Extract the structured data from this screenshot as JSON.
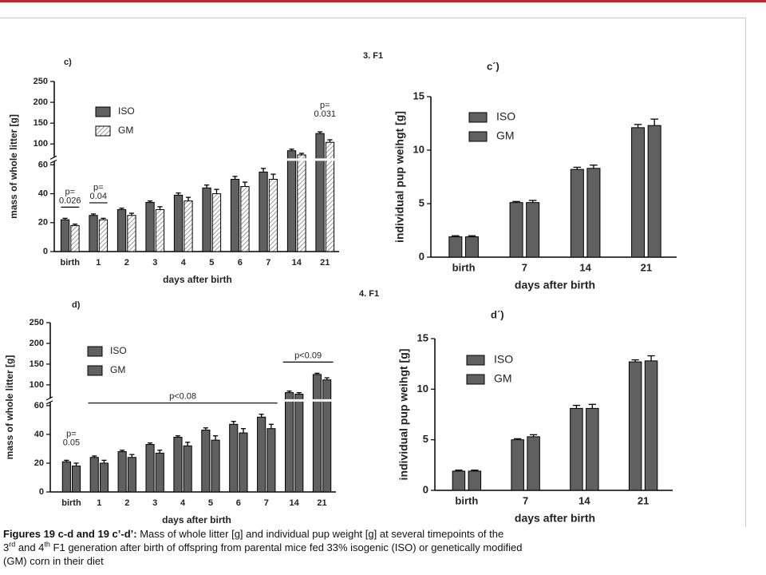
{
  "sections": [
    "3. F1",
    "4. F1"
  ],
  "chart_data": [
    {
      "type": "bar",
      "panel": "c)",
      "xlabel": "days after birth",
      "ylabel": "mass of whole litter [g]",
      "categories": [
        "birth",
        "1",
        "2",
        "3",
        "4",
        "5",
        "6",
        "7",
        "14",
        "21"
      ],
      "series": [
        {
          "name": "ISO",
          "color": "#606060",
          "values": [
            22,
            25,
            29,
            34,
            39,
            44,
            50,
            55,
            87,
            125
          ],
          "errors": [
            1,
            1,
            1,
            1,
            1.5,
            2,
            2,
            2.5,
            3,
            4
          ]
        },
        {
          "name": "GM",
          "color": "#9a9a9a",
          "pattern": "hatch",
          "values": [
            18,
            22,
            25,
            29,
            35,
            40,
            45,
            50,
            79,
            104
          ],
          "errors": [
            1,
            1,
            1.5,
            2,
            2.5,
            3,
            3,
            3.5,
            3,
            6
          ]
        }
      ],
      "ylim": [
        0,
        250
      ],
      "yticks": [
        0,
        20,
        40,
        60,
        100,
        150,
        200,
        250
      ],
      "ybreak": 60,
      "legend": "upper left",
      "annotations": [
        {
          "lines": [
            "p=",
            "0.026"
          ],
          "from": "birth",
          "to": "birth",
          "line": true
        },
        {
          "lines": [
            "p=",
            "0.04"
          ],
          "from": "1",
          "to": "1",
          "line": true
        },
        {
          "lines": [
            "p=",
            "0.031"
          ],
          "from": "21",
          "to": "21",
          "line": false
        }
      ]
    },
    {
      "type": "bar",
      "panel": "c´)",
      "xlabel": "days after birth",
      "ylabel": "individual pup weihgt [g]",
      "categories": [
        "birth",
        "7",
        "14",
        "21"
      ],
      "series": [
        {
          "name": "ISO",
          "color": "#606060",
          "values": [
            1.9,
            5.1,
            8.2,
            12.1
          ],
          "errors": [
            0.1,
            0.1,
            0.2,
            0.3
          ]
        },
        {
          "name": "GM",
          "color": "#606060",
          "values": [
            1.9,
            5.1,
            8.3,
            12.3
          ],
          "errors": [
            0.1,
            0.2,
            0.3,
            0.6
          ]
        }
      ],
      "ylim": [
        0,
        15
      ],
      "yticks": [
        0,
        5,
        10,
        15
      ],
      "legend": "upper left"
    },
    {
      "type": "bar",
      "panel": "d)",
      "xlabel": "days after birth",
      "ylabel": "mass of whole litter [g]",
      "categories": [
        "birth",
        "1",
        "2",
        "3",
        "4",
        "5",
        "6",
        "7",
        "14",
        "21"
      ],
      "series": [
        {
          "name": "ISO",
          "color": "#606060",
          "values": [
            21,
            24,
            28,
            33,
            38,
            43,
            47,
            52,
            85,
            125
          ],
          "errors": [
            1,
            1,
            1,
            1,
            1,
            1.5,
            2,
            2,
            3,
            3
          ]
        },
        {
          "name": "GM",
          "color": "#606060",
          "values": [
            18,
            20,
            24,
            27,
            32,
            36,
            41,
            44,
            82,
            112
          ],
          "errors": [
            2,
            2,
            2,
            2,
            2.5,
            3,
            3,
            3,
            3,
            5
          ]
        }
      ],
      "ylim": [
        0,
        250
      ],
      "yticks": [
        0,
        20,
        40,
        60,
        100,
        150,
        200,
        250
      ],
      "ybreak": 60,
      "legend": "upper left",
      "annotations": [
        {
          "lines": [
            "p=",
            "0.05"
          ],
          "from": "birth",
          "to": "birth",
          "line": false
        },
        {
          "lines": [
            "p<0.08"
          ],
          "from": "1",
          "to": "7",
          "line": true
        },
        {
          "lines": [
            "p<0.09"
          ],
          "from": "14",
          "to": "21",
          "line": true
        }
      ]
    },
    {
      "type": "bar",
      "panel": "d´)",
      "xlabel": "days after birth",
      "ylabel": "individual pup weihgt [g]",
      "categories": [
        "birth",
        "7",
        "14",
        "21"
      ],
      "series": [
        {
          "name": "ISO",
          "color": "#606060",
          "values": [
            1.9,
            5.0,
            8.1,
            12.7
          ],
          "errors": [
            0.1,
            0.1,
            0.3,
            0.2
          ]
        },
        {
          "name": "GM",
          "color": "#606060",
          "values": [
            1.9,
            5.3,
            8.1,
            12.8
          ],
          "errors": [
            0.1,
            0.2,
            0.4,
            0.5
          ]
        }
      ],
      "ylim": [
        0,
        15
      ],
      "yticks": [
        0,
        5,
        10,
        15
      ],
      "legend": "upper left"
    }
  ],
  "caption": {
    "lines": [
      [
        "Figures 19 c-d and 19 c’-d’:",
        " Mass of whole litter [g] and individual pup weight [g] at several timepoints of the"
      ],
      [
        "3",
        "rd",
        " and 4",
        "th",
        " F1 generation after birth of offspring from parental mice fed 33% isogenic (ISO) or genetically modified"
      ],
      [
        "(GM) corn in their diet"
      ]
    ]
  }
}
